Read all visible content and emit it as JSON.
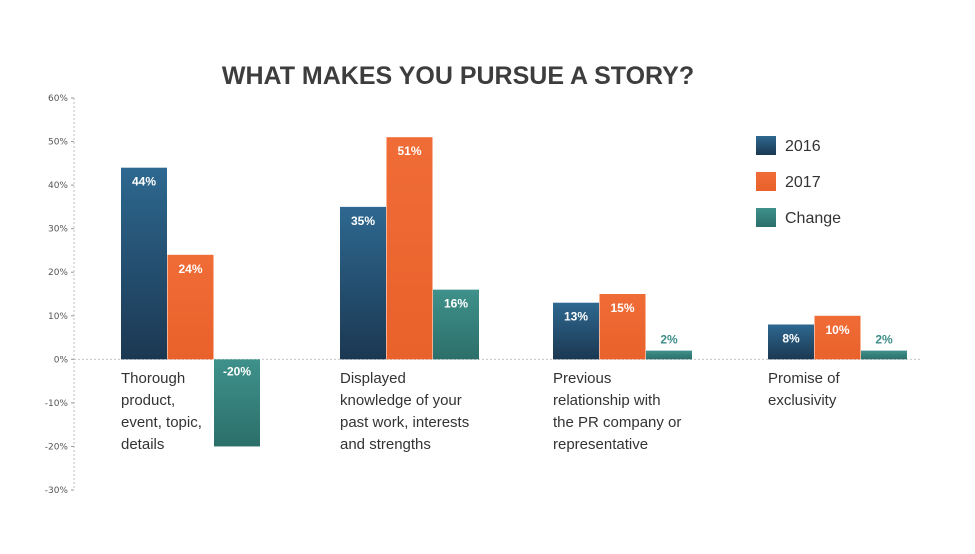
{
  "chart_data": {
    "type": "bar",
    "title": "WHAT MAKES YOU PURSUE A STORY?",
    "xlabel": "",
    "ylabel": "",
    "ylim": [
      -30,
      60
    ],
    "yticks": [
      60,
      50,
      40,
      30,
      20,
      10,
      0,
      -10,
      -20,
      -30
    ],
    "ytick_labels": [
      "60%",
      "50%",
      "40%",
      "30%",
      "20%",
      "10%",
      "0%",
      "-10%",
      "-20%",
      "-30%"
    ],
    "categories": [
      [
        "Thorough",
        "product,",
        "event, topic,",
        "details"
      ],
      [
        "Displayed",
        "knowledge of your",
        "past work, interests",
        "and strengths"
      ],
      [
        "Previous",
        "relationship with",
        "the PR company or",
        "representative"
      ],
      [
        "Promise of",
        "exclusivity"
      ]
    ],
    "series": [
      {
        "name": "2016",
        "values": [
          44,
          35,
          13,
          8
        ],
        "labels": [
          "44%",
          "35%",
          "13%",
          "8%"
        ]
      },
      {
        "name": "2017",
        "values": [
          24,
          51,
          15,
          10
        ],
        "labels": [
          "24%",
          "51%",
          "15%",
          "10%"
        ]
      },
      {
        "name": "Change",
        "values": [
          -20,
          16,
          2,
          2
        ],
        "labels": [
          "-20%",
          "16%",
          "2%",
          "2%"
        ]
      }
    ],
    "colors": {
      "2016": "#2a5f86",
      "2017": "#ee6a35",
      "Change": "#3d8d88",
      "label_inside": "#ffffff",
      "label_outside": "#3d8d88"
    },
    "legend_position": "right",
    "grid": false
  }
}
